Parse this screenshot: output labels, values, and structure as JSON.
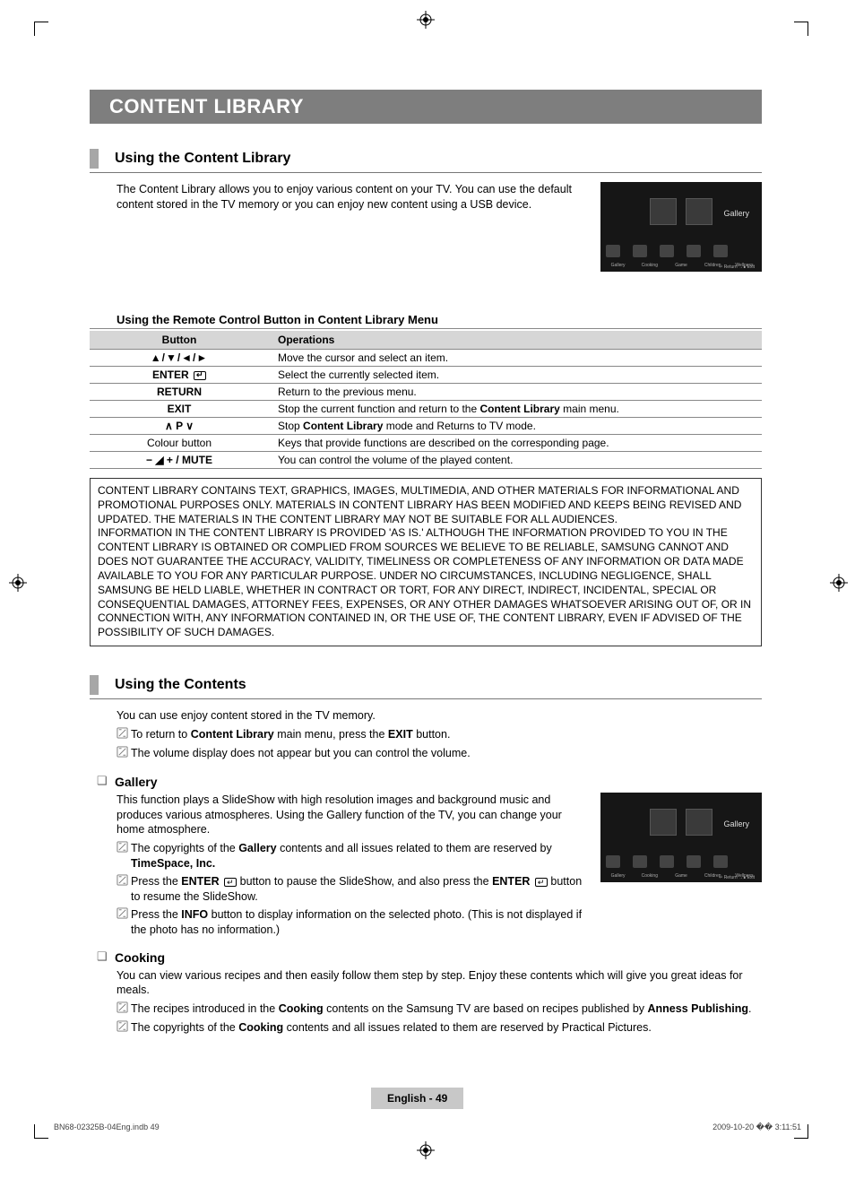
{
  "title_bar": "CONTENT LIBRARY",
  "section1": {
    "heading": "Using the Content Library",
    "intro": "The Content Library allows you to enjoy various content on your TV. You can use the default content stored in the TV memory or you can enjoy new content using a USB device.",
    "sub_heading": "Using the Remote Control Button in Content Library Menu",
    "table": {
      "head_button": "Button",
      "head_ops": "Operations",
      "rows": [
        {
          "btn_html": "▲/▼/◄/►",
          "btn_class": "arrows-glyph",
          "op_html": "Move the cursor and select an item."
        },
        {
          "btn_html": "ENTER <span class=\"enter-icon\"></span>",
          "op_html": "Select the currently selected item."
        },
        {
          "btn_html": "RETURN",
          "op_html": "Return to the previous menu."
        },
        {
          "btn_html": "EXIT",
          "op_html": "Stop the current function and return to the <b>Content Library</b> main menu."
        },
        {
          "btn_html": "∧ P ∨",
          "op_html": "Stop <b>Content Library</b> mode and Returns to TV mode."
        },
        {
          "btn_html": "Colour button",
          "btn_norm": true,
          "op_html": "Keys that provide functions are described on the corresponding page."
        },
        {
          "btn_html": "− ◢ + / <b>MUTE</b>",
          "op_html": "You can control the volume of the played content."
        }
      ]
    },
    "disclaimer": "CONTENT LIBRARY CONTAINS TEXT, GRAPHICS, IMAGES, MULTIMEDIA, AND OTHER MATERIALS FOR INFORMATIONAL AND PROMOTIONAL PURPOSES ONLY. MATERIALS IN CONTENT LIBRARY HAS BEEN MODIFIED AND KEEPS BEING REVISED AND UPDATED. THE MATERIALS IN THE CONTENT LIBRARY MAY NOT BE SUITABLE FOR ALL AUDIENCES.\nINFORMATION IN THE CONTENT LIBRARY IS PROVIDED 'AS IS.' ALTHOUGH THE INFORMATION PROVIDED TO YOU IN THE CONTENT LIBRARY IS OBTAINED OR COMPLIED FROM SOURCES WE BELIEVE TO BE RELIABLE, SAMSUNG CANNOT AND DOES NOT GUARANTEE THE ACCURACY, VALIDITY, TIMELINESS OR COMPLETENESS OF ANY INFORMATION OR DATA MADE AVAILABLE TO YOU FOR ANY PARTICULAR PURPOSE. UNDER NO CIRCUMSTANCES, INCLUDING NEGLIGENCE, SHALL SAMSUNG BE HELD LIABLE, WHETHER IN CONTRACT OR TORT, FOR ANY DIRECT, INDIRECT, INCIDENTAL, SPECIAL OR CONSEQUENTIAL DAMAGES, ATTORNEY FEES, EXPENSES, OR ANY OTHER DAMAGES WHATSOEVER ARISING OUT OF, OR IN CONNECTION WITH, ANY INFORMATION CONTAINED IN, OR THE USE OF, THE CONTENT LIBRARY, EVEN IF ADVISED OF THE POSSIBILITY OF SUCH DAMAGES."
  },
  "section2": {
    "heading": "Using the Contents",
    "intro": "You can use enjoy content stored in the TV memory.",
    "notes": [
      "To return to <b>Content Library</b> main menu, press the <b>EXIT</b> button.",
      "The volume display does not appear but you can control the volume."
    ],
    "gallery": {
      "title": "Gallery",
      "desc": "This function plays a SlideShow with high resolution images and background music and produces various atmospheres. Using the Gallery function of the TV, you can change your home atmosphere.",
      "notes": [
        "The copyrights of the <b>Gallery</b> contents and all issues related to them are reserved by <b>TimeSpace, Inc.</b>",
        "Press the <b>ENTER</b> <span class=\"enter-icon\"></span> button to pause the SlideShow, and also press the <b>ENTER</b> <span class=\"enter-icon\"></span> button to resume the SlideShow.",
        "Press the <b>INFO</b> button to display information on the selected photo. (This is not displayed if the photo has no information.)"
      ]
    },
    "cooking": {
      "title": "Cooking",
      "desc": "You can view various recipes and then easily follow them step by step. Enjoy these contents which will give you great ideas for meals.",
      "notes": [
        "The recipes introduced in the <b>Cooking</b> contents on the Samsung TV are based on recipes published by <b>Anness Publishing</b>.",
        "The copyrights of the <b>Cooking</b> contents and all issues related to them are reserved by Practical Pictures."
      ]
    }
  },
  "thumb": {
    "gallery_label": "Gallery",
    "icon_labels": [
      "Gallery",
      "Cooking",
      "Game",
      "Children",
      "Wellness"
    ],
    "return_label": "↩ Return   →∎ Exit"
  },
  "page_foot": "English - 49",
  "footer": {
    "left": "BN68-02325B-04Eng.indb   49",
    "right": "2009-10-20   �� 3:11:51"
  }
}
